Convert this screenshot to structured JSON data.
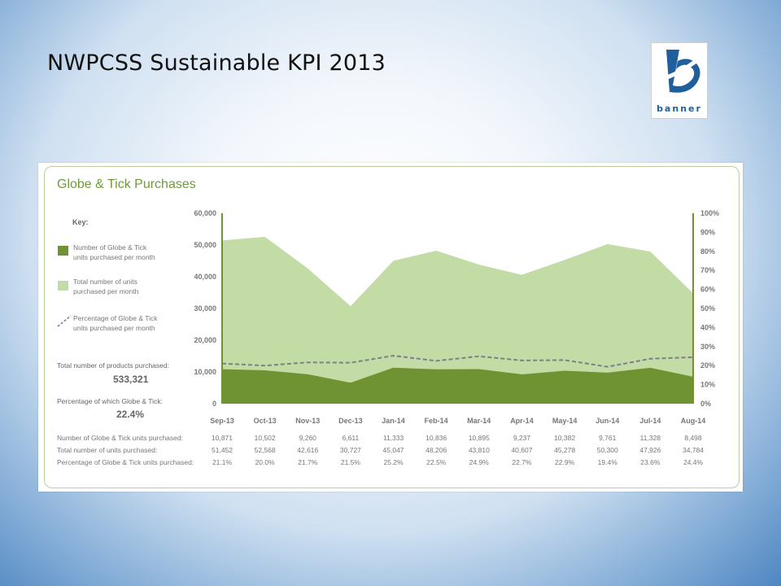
{
  "slide": {
    "title": "NWPCSS Sustainable KPI 2013"
  },
  "logo": {
    "text": "banner"
  },
  "chart_data": {
    "type": "area",
    "title": "Globe & Tick Purchases",
    "categories": [
      "Sep-13",
      "Oct-13",
      "Nov-13",
      "Dec-13",
      "Jan-14",
      "Feb-14",
      "Mar-14",
      "Apr-14",
      "May-14",
      "Jun-14",
      "Jul-14",
      "Aug-14"
    ],
    "series": [
      {
        "name": "Number of Globe & Tick units purchased per month",
        "axis": "left",
        "values": [
          10871,
          10502,
          9260,
          6611,
          11333,
          10836,
          10895,
          9237,
          10382,
          9761,
          11328,
          8498
        ]
      },
      {
        "name": "Total number of units purchased per month",
        "axis": "left",
        "values": [
          51452,
          52568,
          42616,
          30727,
          45047,
          48206,
          43810,
          40607,
          45278,
          50300,
          47926,
          34784
        ]
      },
      {
        "name": "Percentage of Globe & Tick units purchased per month",
        "axis": "right",
        "values": [
          21.1,
          20.0,
          21.7,
          21.5,
          25.2,
          22.5,
          24.9,
          22.7,
          22.9,
          19.4,
          23.6,
          24.4
        ]
      }
    ],
    "y_left": {
      "ticks": [
        "0",
        "10,000",
        "20,000",
        "30,000",
        "40,000",
        "50,000",
        "60,000"
      ],
      "range": [
        0,
        60000
      ]
    },
    "y_right": {
      "ticks": [
        "0%",
        "10%",
        "20%",
        "30%",
        "40%",
        "50%",
        "60%",
        "70%",
        "80%",
        "90%",
        "100%"
      ],
      "range": [
        0,
        100
      ]
    },
    "colors": {
      "dark": "#6f9232",
      "light": "#c3dba5",
      "dashed": "#7d7f8a",
      "title": "#6f9a3b"
    },
    "legend": {
      "title": "Key:",
      "items": [
        {
          "line1": "Number of Globe & Tick",
          "line2": "units purchased per month"
        },
        {
          "line1": "Total number of units",
          "line2": "purchased per month"
        },
        {
          "line1": "Percentage of Globe & Tick",
          "line2": "units purchased per month"
        }
      ]
    },
    "summary": {
      "total_label": "Total number of products purchased:",
      "total_value": "533,321",
      "pct_label": "Percentage of which Globe & Tick:",
      "pct_value": "22.4%"
    },
    "table": {
      "row_labels": [
        "Number of Globe & Tick units purchased:",
        "Total number of units purchased:",
        "Percentage of Globe & Tick units purchased:"
      ],
      "rows": [
        [
          "10,871",
          "10,502",
          "9,260",
          "6,611",
          "11,333",
          "10,836",
          "10,895",
          "9,237",
          "10,382",
          "9,761",
          "11,328",
          "8,498"
        ],
        [
          "51,452",
          "52,568",
          "42,616",
          "30,727",
          "45,047",
          "48,206",
          "43,810",
          "40,607",
          "45,278",
          "50,300",
          "47,926",
          "34,784"
        ],
        [
          "21.1%",
          "20.0%",
          "21.7%",
          "21.5%",
          "25.2%",
          "22.5%",
          "24.9%",
          "22.7%",
          "22.9%",
          "19.4%",
          "23.6%",
          "24.4%"
        ]
      ]
    }
  }
}
